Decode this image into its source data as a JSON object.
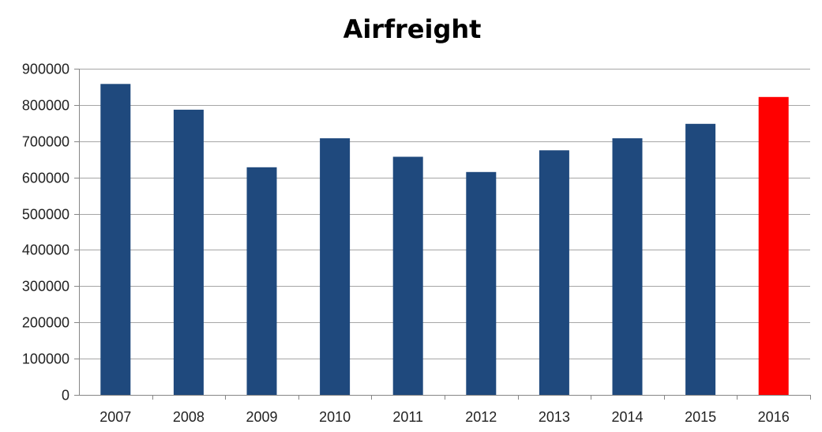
{
  "chart_data": {
    "type": "bar",
    "title": "Airfreight",
    "xlabel": "",
    "ylabel": "",
    "categories": [
      "2007",
      "2008",
      "2009",
      "2010",
      "2011",
      "2012",
      "2013",
      "2014",
      "2015",
      "2016"
    ],
    "values": [
      858000,
      787000,
      628000,
      708000,
      657000,
      615000,
      675000,
      708000,
      748000,
      822000
    ],
    "ylim": [
      0,
      900000
    ],
    "yticks": [
      "0",
      "100000",
      "200000",
      "300000",
      "400000",
      "500000",
      "600000",
      "700000",
      "800000",
      "900000"
    ],
    "grid": true,
    "legend": "none",
    "colors": {
      "default_bar": "#1f497d",
      "highlight_bar": "#ff0000"
    },
    "highlight_category": "2016"
  }
}
